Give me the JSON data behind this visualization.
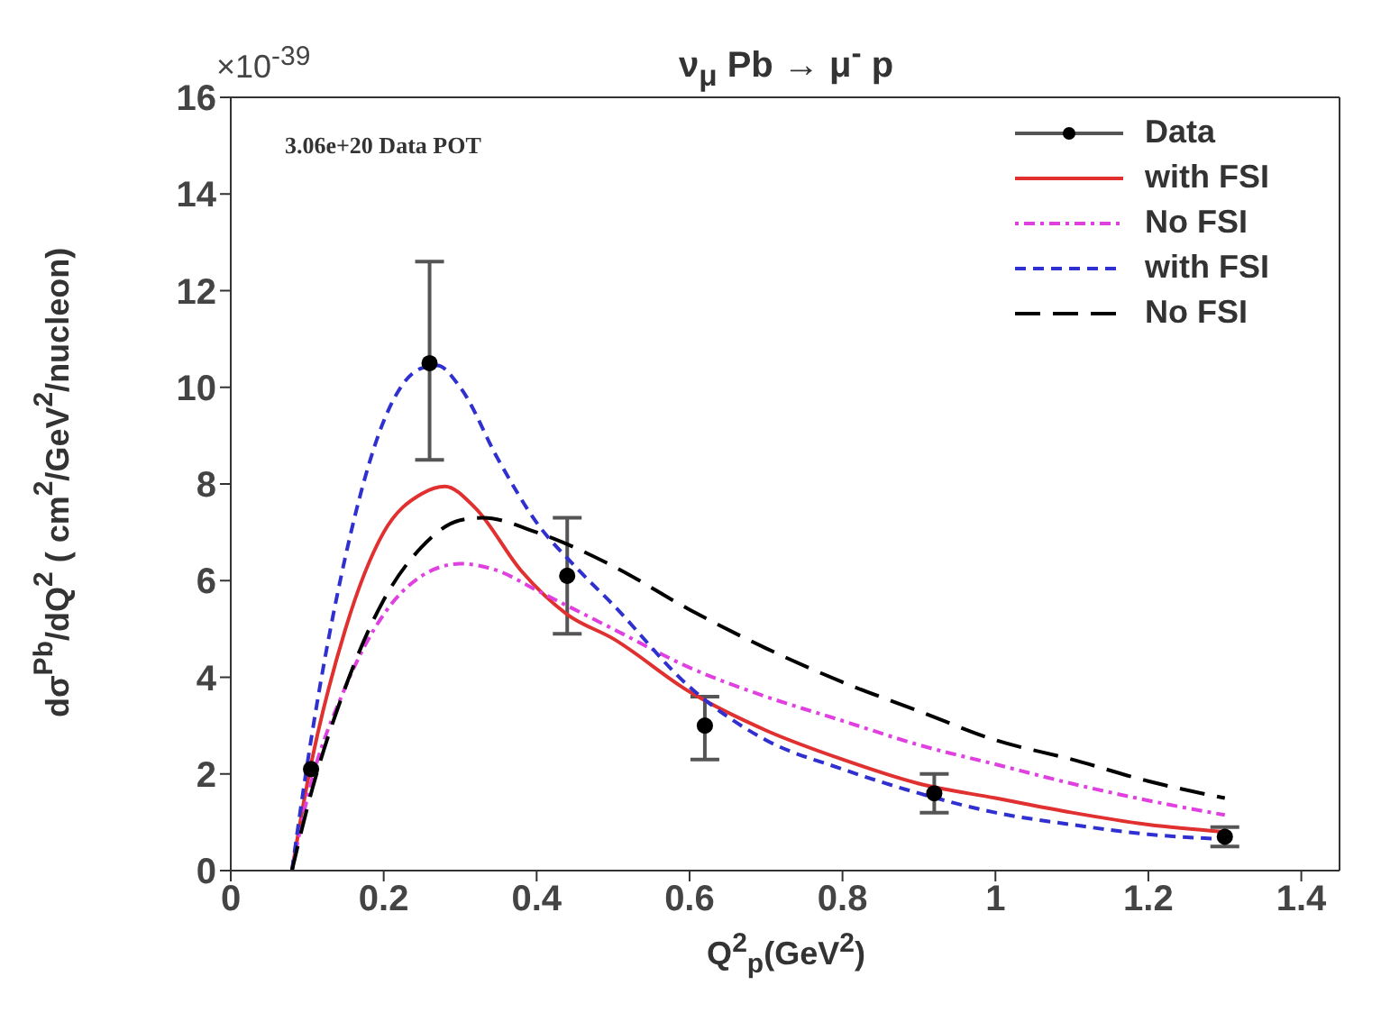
{
  "chart_data": {
    "type": "line",
    "title": "ν$_{μ}$ Pb → μ$^{-}$ p",
    "xlabel": "Q$^{2}$$_{p}$(GeV$^{2}$)",
    "ylabel": "dσ$^{Pb}$/dQ$^{2}$ ( cm$^{2}$/GeV$^{2}$/nucleon)",
    "annotations": [
      "×10$^{-39}$",
      "3.06e+20 Data POT"
    ],
    "xlim": [
      0,
      1.45
    ],
    "xticks": [
      0,
      0.2,
      0.4,
      0.6,
      0.8,
      1,
      1.2,
      1.4
    ],
    "ylim": [
      0,
      16
    ],
    "yticks": [
      0,
      2,
      4,
      6,
      8,
      10,
      12,
      14,
      16
    ],
    "grid": false,
    "legend": "top right",
    "series": [
      {
        "name": "Data",
        "type": "scatter",
        "color": "#000000",
        "marker": "circle",
        "x": [
          0.105,
          0.26,
          0.44,
          0.62,
          0.92,
          1.3
        ],
        "values": [
          2.1,
          10.5,
          6.1,
          3.0,
          1.6,
          0.7
        ],
        "errors": [
          null,
          [
            8.5,
            12.6
          ],
          [
            4.9,
            7.3
          ],
          [
            2.3,
            3.6
          ],
          [
            1.2,
            2.0
          ],
          [
            0.5,
            0.9
          ]
        ]
      },
      {
        "name": "with FSI",
        "color": "#e03030",
        "line_style": "solid",
        "marker": "none",
        "x": [
          0.08,
          0.1,
          0.15,
          0.2,
          0.25,
          0.28,
          0.32,
          0.38,
          0.44,
          0.5,
          0.6,
          0.7,
          0.8,
          0.9,
          1.0,
          1.1,
          1.2,
          1.3
        ],
        "values": [
          0,
          1.8,
          5,
          7,
          7.8,
          7.95,
          7.5,
          6.2,
          5.3,
          4.8,
          3.7,
          2.9,
          2.3,
          1.8,
          1.5,
          1.2,
          0.95,
          0.8
        ]
      },
      {
        "name": "No FSI",
        "color": "#e040e0",
        "line_style": "dotted",
        "marker": "none",
        "x": [
          0.08,
          0.1,
          0.15,
          0.2,
          0.25,
          0.3,
          0.35,
          0.4,
          0.5,
          0.6,
          0.7,
          0.8,
          0.9,
          1.0,
          1.1,
          1.2,
          1.3
        ],
        "values": [
          0,
          1.5,
          3.8,
          5.3,
          6.1,
          6.35,
          6.2,
          5.8,
          5.0,
          4.2,
          3.6,
          3.1,
          2.6,
          2.2,
          1.8,
          1.45,
          1.15
        ]
      },
      {
        "name": "with FSI",
        "color": "#3030d0",
        "line_style": "dashed",
        "marker": "none",
        "x": [
          0.08,
          0.1,
          0.15,
          0.2,
          0.25,
          0.27,
          0.3,
          0.35,
          0.4,
          0.45,
          0.5,
          0.6,
          0.7,
          0.8,
          0.9,
          1.0,
          1.1,
          1.2,
          1.3
        ],
        "values": [
          0,
          2.2,
          6.5,
          9.3,
          10.4,
          10.45,
          10.0,
          8.5,
          7.2,
          6.3,
          5.5,
          3.8,
          2.7,
          2.1,
          1.6,
          1.2,
          0.95,
          0.75,
          0.65
        ]
      },
      {
        "name": "No FSI",
        "color": "#000000",
        "line_style": "dashed",
        "marker": "none",
        "x": [
          0.08,
          0.1,
          0.15,
          0.2,
          0.25,
          0.3,
          0.33,
          0.4,
          0.5,
          0.6,
          0.7,
          0.8,
          0.9,
          1.0,
          1.1,
          1.2,
          1.3
        ],
        "values": [
          0,
          1.3,
          3.8,
          5.6,
          6.7,
          7.25,
          7.3,
          7.0,
          6.3,
          5.4,
          4.6,
          3.9,
          3.3,
          2.7,
          2.3,
          1.85,
          1.5
        ]
      }
    ]
  }
}
